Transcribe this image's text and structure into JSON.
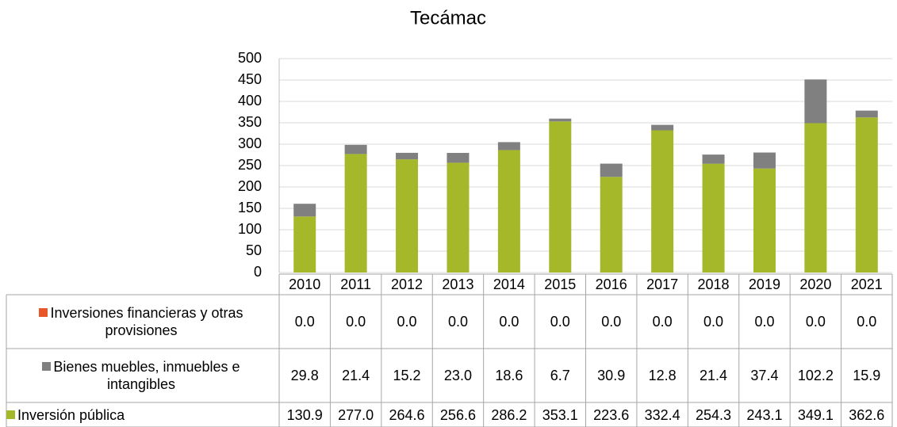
{
  "chart_data": {
    "type": "bar",
    "stacked": true,
    "title": "Tecámac",
    "categories": [
      "2010",
      "2011",
      "2012",
      "2013",
      "2014",
      "2015",
      "2016",
      "2017",
      "2018",
      "2019",
      "2020",
      "2021"
    ],
    "series": [
      {
        "name": "Inversiones financieras y otras provisiones",
        "color": "#e8562a",
        "values": [
          0,
          0,
          0,
          0,
          0,
          0,
          0,
          0,
          0,
          0,
          0,
          0
        ],
        "value_labels": [
          "0.0",
          "0.0",
          "0.0",
          "0.0",
          "0.0",
          "0.0",
          "0.0",
          "0.0",
          "0.0",
          "0.0",
          "0.0",
          "0.0"
        ]
      },
      {
        "name": "Bienes muebles, inmuebles e intangibles",
        "color": "#808080",
        "values": [
          29.8,
          21.4,
          15.2,
          23,
          18.6,
          6.7,
          30.9,
          12.8,
          21.4,
          37.4,
          102.2,
          15.9
        ],
        "value_labels": [
          "29.8",
          "21.4",
          "15.2",
          "23.0",
          "18.6",
          "6.7",
          "30.9",
          "12.8",
          "21.4",
          "37.4",
          "102.2",
          "15.9"
        ]
      },
      {
        "name": "Inversión pública",
        "color": "#a5b829",
        "values": [
          130.9,
          277,
          264.6,
          256.6,
          286.2,
          353.1,
          223.6,
          332.4,
          254.3,
          243.1,
          349.1,
          362.6
        ],
        "value_labels": [
          "130.9",
          "277.0",
          "264.6",
          "256.6",
          "286.2",
          "353.1",
          "223.6",
          "332.4",
          "254.3",
          "243.1",
          "349.1",
          "362.6"
        ]
      }
    ],
    "ylim": [
      0,
      500
    ],
    "yticks": [
      0,
      50,
      100,
      150,
      200,
      250,
      300,
      350,
      400,
      450,
      500
    ],
    "grid": true
  }
}
